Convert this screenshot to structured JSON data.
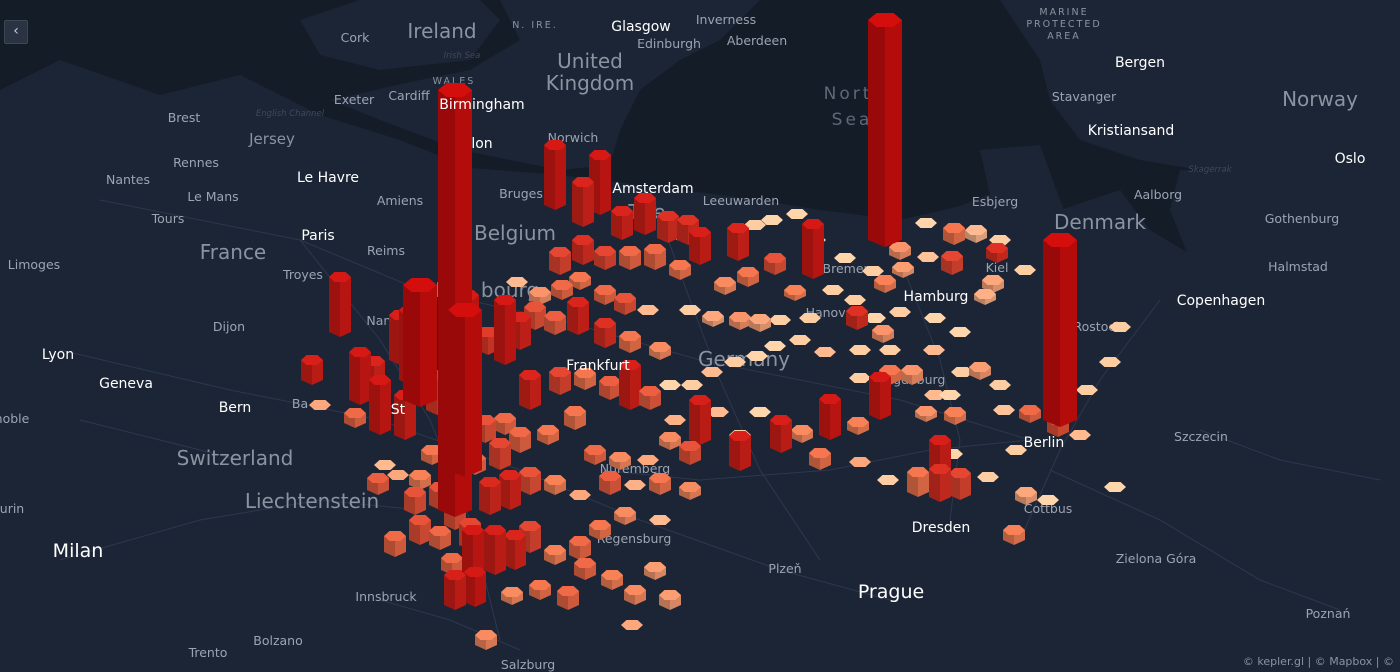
{
  "controls": {
    "back_icon": "chevron-left-icon",
    "back_glyph": "‹"
  },
  "attribution": "© kepler.gl | © Mapbox | ©",
  "labels": [
    {
      "text": "Ireland",
      "kind": "country"
    },
    {
      "text": "N. IRE.",
      "kind": "region"
    },
    {
      "text": "Glasgow",
      "kind": "city-major"
    },
    {
      "text": "Inverness",
      "kind": "city"
    },
    {
      "text": "Edinburgh",
      "kind": "city"
    },
    {
      "text": "Aberdeen",
      "kind": "city"
    },
    {
      "text": "MARINE",
      "kind": "region"
    },
    {
      "text": "PROTECTED",
      "kind": "region"
    },
    {
      "text": "AREA",
      "kind": "region"
    },
    {
      "text": "Cork",
      "kind": "city"
    },
    {
      "text": "Irish Sea",
      "kind": "water-small"
    },
    {
      "text": "United",
      "kind": "country"
    },
    {
      "text": "Kingdom",
      "kind": "country"
    },
    {
      "text": "WALES",
      "kind": "region"
    },
    {
      "text": "Bergen",
      "kind": "city-major"
    },
    {
      "text": "Exeter",
      "kind": "city"
    },
    {
      "text": "Cardiff",
      "kind": "city"
    },
    {
      "text": "Birmingham",
      "kind": "city-major"
    },
    {
      "text": "Nort",
      "kind": "water"
    },
    {
      "text": "Sea",
      "kind": "water"
    },
    {
      "text": "Stavanger",
      "kind": "city"
    },
    {
      "text": "Norway",
      "kind": "country"
    },
    {
      "text": "Brest",
      "kind": "city"
    },
    {
      "text": "English Channel",
      "kind": "water-small"
    },
    {
      "text": "Kristiansand",
      "kind": "city-major"
    },
    {
      "text": "Jersey",
      "kind": "country-small"
    },
    {
      "text": "Norwich",
      "kind": "city"
    },
    {
      "text": "lon",
      "kind": "city-major"
    },
    {
      "text": "Oslo",
      "kind": "city-major"
    },
    {
      "text": "Rennes",
      "kind": "city"
    },
    {
      "text": "Skagerrak",
      "kind": "water-small"
    },
    {
      "text": "Nantes",
      "kind": "city"
    },
    {
      "text": "Le Havre",
      "kind": "city-major"
    },
    {
      "text": "Le Mans",
      "kind": "city"
    },
    {
      "text": "Amsterdam",
      "kind": "city-major"
    },
    {
      "text": "Aalborg",
      "kind": "city"
    },
    {
      "text": "Bruges",
      "kind": "city"
    },
    {
      "text": "Amiens",
      "kind": "city"
    },
    {
      "text": "Leeuwarden",
      "kind": "city"
    },
    {
      "text": "Esbjerg",
      "kind": "city"
    },
    {
      "text": "Gothenburg",
      "kind": "city"
    },
    {
      "text": "Tours",
      "kind": "city"
    },
    {
      "text": "The",
      "kind": "country"
    },
    {
      "text": "Denmark",
      "kind": "country"
    },
    {
      "text": "France",
      "kind": "country"
    },
    {
      "text": "Paris",
      "kind": "city-major"
    },
    {
      "text": "Belgium",
      "kind": "country"
    },
    {
      "text": "ds",
      "kind": "country"
    },
    {
      "text": "Reims",
      "kind": "city"
    },
    {
      "text": "Limoges",
      "kind": "city"
    },
    {
      "text": "Troyes",
      "kind": "city"
    },
    {
      "text": "Halmstad",
      "kind": "city"
    },
    {
      "text": "Bremen",
      "kind": "city"
    },
    {
      "text": "Kiel",
      "kind": "city"
    },
    {
      "text": "Lu",
      "kind": "country"
    },
    {
      "text": "bourg",
      "kind": "country"
    },
    {
      "text": "Hamburg",
      "kind": "city-major"
    },
    {
      "text": "Copenhagen",
      "kind": "city-major"
    },
    {
      "text": "Nancy",
      "kind": "city"
    },
    {
      "text": "Hanover",
      "kind": "city"
    },
    {
      "text": "Dijon",
      "kind": "city"
    },
    {
      "text": "Rostock",
      "kind": "city"
    },
    {
      "text": "Lyon",
      "kind": "city-major"
    },
    {
      "text": "Germany",
      "kind": "country"
    },
    {
      "text": "Frankfurt",
      "kind": "city-major"
    },
    {
      "text": "Geneva",
      "kind": "city-major"
    },
    {
      "text": "Magdeburg",
      "kind": "city"
    },
    {
      "text": "Bern",
      "kind": "city-major"
    },
    {
      "text": "Ba",
      "kind": "city"
    },
    {
      "text": "St",
      "kind": "city-major"
    },
    {
      "text": "Szczecin",
      "kind": "city"
    },
    {
      "text": "Berlin",
      "kind": "city-major"
    },
    {
      "text": "noble",
      "kind": "city"
    },
    {
      "text": "Switzerland",
      "kind": "country"
    },
    {
      "text": "Nuremberg",
      "kind": "city"
    },
    {
      "text": "Liechtenstein",
      "kind": "country"
    },
    {
      "text": "urin",
      "kind": "city"
    },
    {
      "text": "Cottbus",
      "kind": "city"
    },
    {
      "text": "Dresden",
      "kind": "city-major"
    },
    {
      "text": "Regensburg",
      "kind": "city"
    },
    {
      "text": "Milan",
      "kind": "city-big"
    },
    {
      "text": "Zielona Góra",
      "kind": "city"
    },
    {
      "text": "Plzeň",
      "kind": "city"
    },
    {
      "text": "Prague",
      "kind": "city-big"
    },
    {
      "text": "Innsbruck",
      "kind": "city"
    },
    {
      "text": "Poznań",
      "kind": "city"
    },
    {
      "text": "Bolzano",
      "kind": "city"
    },
    {
      "text": "Trento",
      "kind": "city"
    },
    {
      "text": "Salzburg",
      "kind": "city"
    }
  ],
  "colors": {
    "ocean": "#141c28",
    "land": "#1c2535",
    "road": "#2e3a4e",
    "bar_low": "#f0cfa8",
    "bar_high": "#c40c0c"
  }
}
